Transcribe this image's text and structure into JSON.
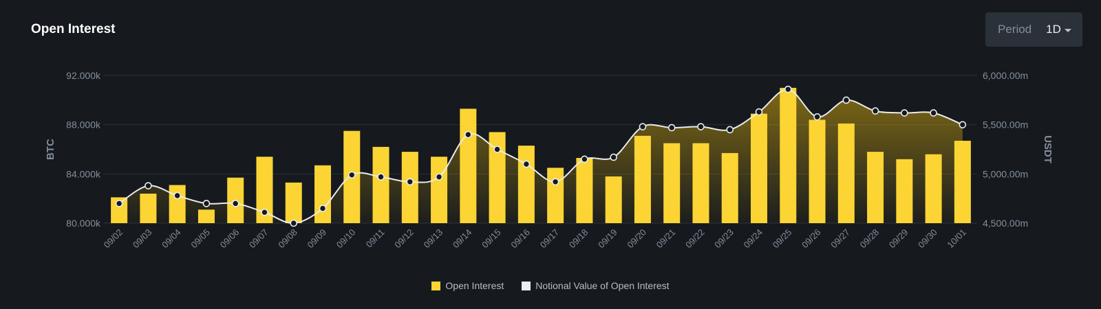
{
  "header": {
    "title": "Open Interest"
  },
  "period": {
    "label": "Period",
    "value": "1D"
  },
  "legend": [
    {
      "label": "Open Interest",
      "color": "#f0b90b"
    },
    {
      "label": "Notional Value of Open Interest",
      "color": "#eaecef"
    }
  ],
  "chart_data": {
    "type": "bar",
    "categories": [
      "09/02",
      "09/03",
      "09/04",
      "09/05",
      "09/06",
      "09/07",
      "09/08",
      "09/09",
      "09/10",
      "09/11",
      "09/12",
      "09/13",
      "09/14",
      "09/15",
      "09/16",
      "09/17",
      "09/18",
      "09/19",
      "09/20",
      "09/21",
      "09/22",
      "09/23",
      "09/24",
      "09/25",
      "09/26",
      "09/27",
      "09/28",
      "09/29",
      "09/30",
      "10/01"
    ],
    "series": [
      {
        "name": "Open Interest",
        "type": "bar",
        "axis": "left",
        "color": "#fcd535",
        "values": [
          82100,
          82400,
          83100,
          81100,
          83700,
          85400,
          83300,
          84700,
          87500,
          86200,
          85800,
          85400,
          89300,
          87400,
          86300,
          84500,
          85300,
          83800,
          87100,
          86500,
          86500,
          85700,
          88900,
          91000,
          88400,
          88100,
          85800,
          85200,
          85600,
          86700
        ]
      },
      {
        "name": "Notional Value of Open Interest",
        "type": "line",
        "axis": "right",
        "color": "#eaecef",
        "values": [
          4700,
          4880,
          4780,
          4700,
          4700,
          4610,
          4500,
          4650,
          4990,
          4970,
          4920,
          4970,
          5400,
          5250,
          5100,
          4920,
          5150,
          5170,
          5480,
          5470,
          5480,
          5450,
          5630,
          5860,
          5580,
          5750,
          5640,
          5620,
          5620,
          5500
        ]
      }
    ],
    "y_left": {
      "label": "BTC",
      "min": 80000,
      "max": 92000,
      "ticks": [
        "80.000k",
        "84.000k",
        "88.000k",
        "92.000k"
      ]
    },
    "y_right": {
      "label": "USDT",
      "min": 4500,
      "max": 6000,
      "ticks": [
        "4,500.00m",
        "5,000.00m",
        "5,500.00m",
        "6,000.00m"
      ]
    },
    "grid": true,
    "legend_position": "bottom"
  }
}
